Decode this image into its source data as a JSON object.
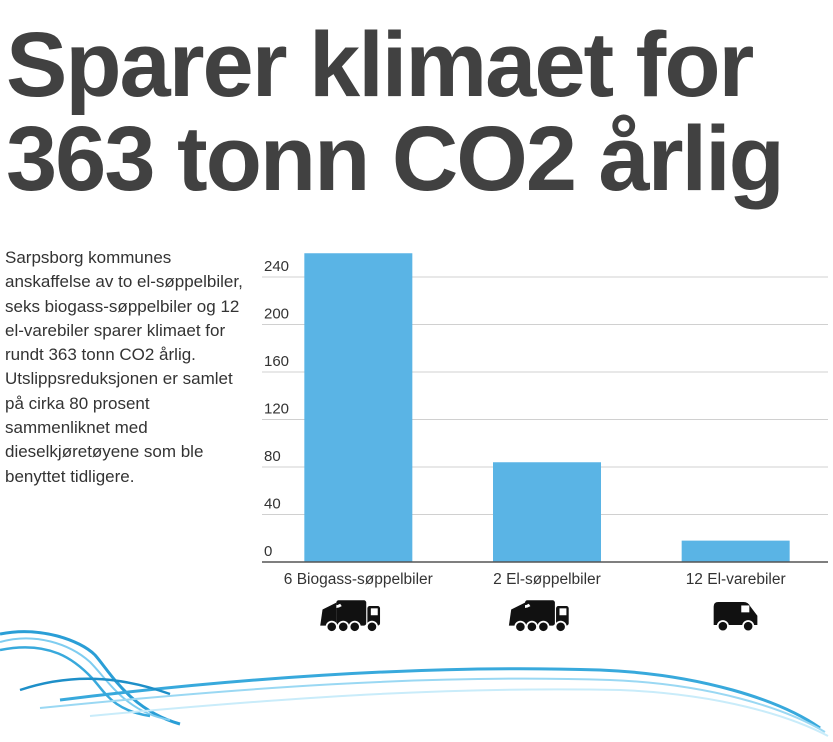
{
  "headline": {
    "line1": "Sparer klimaet for",
    "line2": "363 tonn CO2 årlig"
  },
  "intro_text": "Sarpsborg kommunes anskaffelse av to el-søppelbiler, seks biogass-søppelbiler og 12 el-varebiler sparer klimaet for rundt 363 tonn CO2 årlig. Utslippsreduksjonen er samlet på cirka 80 prosent sammenliknet med dieselkjøretøyene som ble benyttet tidligere.",
  "colors": {
    "bar": "#5ab4e5",
    "headline": "#414141",
    "gridline": "#d0d0d0",
    "wave": "#38a9dc"
  },
  "chart_data": {
    "type": "bar",
    "categories": [
      "6 Biogass-søppelbiler",
      "2 El-søppelbiler",
      "12 El-varebiler"
    ],
    "values": [
      260,
      84,
      18
    ],
    "category_icons": [
      "garbage-truck-icon",
      "garbage-truck-icon",
      "van-icon"
    ],
    "yticks": [
      "0",
      "40",
      "80",
      "120",
      "160",
      "200",
      "240"
    ],
    "ylim": [
      0,
      270
    ],
    "grid": true,
    "title": "",
    "xlabel": "",
    "ylabel": ""
  }
}
